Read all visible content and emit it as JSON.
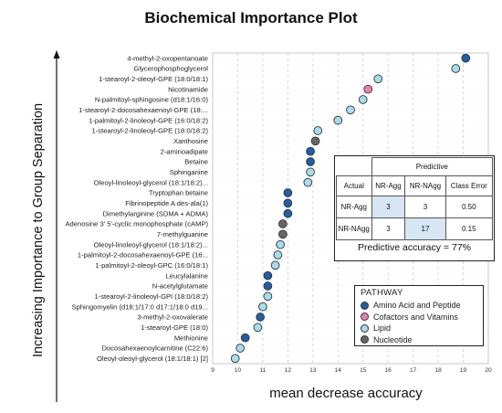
{
  "title": "Biochemical Importance Plot",
  "chart_data": {
    "type": "scatter",
    "title": "Biochemical Importance Plot",
    "xlabel": "mean decrease accuracy",
    "ylabel": "Increasing Importance to Group Separation",
    "xlim": [
      9,
      20
    ],
    "xticks": [
      "9",
      "10",
      "11",
      "12",
      "13",
      "14",
      "15",
      "16",
      "17",
      "18",
      "19",
      "20"
    ],
    "grid": "vertical dashed",
    "pathway_colors": {
      "amino": "#1f5ea8",
      "cofactor": "#e97fb0",
      "lipid": "#a6dcef",
      "nucleotide": "#666666"
    },
    "points": [
      {
        "label": "4-methyl-2-oxopentanoate",
        "value": 19.1,
        "pathway": "amino"
      },
      {
        "label": "Glycerophosphoglycerol",
        "value": 18.7,
        "pathway": "lipid"
      },
      {
        "label": "1-stearoyl-2-oleoyl-GPE (18:0/18:1)",
        "value": 15.6,
        "pathway": "lipid"
      },
      {
        "label": "Nicotinamide",
        "value": 15.2,
        "pathway": "cofactor"
      },
      {
        "label": "N-palmitoyl-sphingosine (d18:1/16:0)",
        "value": 15.0,
        "pathway": "lipid"
      },
      {
        "label": "1-stearoyl-2-docosahexaenoyl-GPE (18:...",
        "value": 14.5,
        "pathway": "lipid"
      },
      {
        "label": "1-palmitoyl-2-linoleoyl-GPE (16:0/18:2)",
        "value": 14.0,
        "pathway": "lipid"
      },
      {
        "label": "1-stearoyl-2-linoleoyl-GPE (18:0/18:2)",
        "value": 13.2,
        "pathway": "lipid"
      },
      {
        "label": "Xanthosine",
        "value": 13.1,
        "pathway": "nucleotide"
      },
      {
        "label": "2-aminoadipate",
        "value": 12.9,
        "pathway": "amino"
      },
      {
        "label": "Betaine",
        "value": 12.9,
        "pathway": "amino"
      },
      {
        "label": "Sphinganine",
        "value": 12.9,
        "pathway": "lipid"
      },
      {
        "label": "Oleoyl-linoleoyl-glycerol (18:1/18:2)...",
        "value": 12.8,
        "pathway": "lipid"
      },
      {
        "label": "Tryptophan betaine",
        "value": 12.0,
        "pathway": "amino"
      },
      {
        "label": "Fibrinopeptide A des-ala(1)",
        "value": 12.0,
        "pathway": "amino"
      },
      {
        "label": "Dimethylarginine (SDMA + ADMA)",
        "value": 12.0,
        "pathway": "amino"
      },
      {
        "label": "Adenosine 3' 5'-cyclic monophosphate (cAMP)",
        "value": 11.8,
        "pathway": "nucleotide"
      },
      {
        "label": "7-methylguanine",
        "value": 11.8,
        "pathway": "nucleotide"
      },
      {
        "label": "Oleoyl-linoleoyl-glycerol (18:1/18:2)...",
        "value": 11.7,
        "pathway": "lipid"
      },
      {
        "label": "1-palmitoyl-2-docosahexaenoyl-GPE (16...",
        "value": 11.6,
        "pathway": "lipid"
      },
      {
        "label": "1-palmitoyl-2-oleoyl-GPC (16:0/18:1)",
        "value": 11.5,
        "pathway": "lipid"
      },
      {
        "label": "Leucylalanine",
        "value": 11.2,
        "pathway": "amino"
      },
      {
        "label": "N-acetylglutamate",
        "value": 11.2,
        "pathway": "amino"
      },
      {
        "label": "1-stearoyl-2-linoleoyl-GPI (18:0/18:2)",
        "value": 11.2,
        "pathway": "lipid"
      },
      {
        "label": "Sphingomyelin (d18:1/17:0 d17:1/18:0 d19...",
        "value": 11.0,
        "pathway": "lipid"
      },
      {
        "label": "3-methyl-2-oxovalerate",
        "value": 10.9,
        "pathway": "amino"
      },
      {
        "label": "1-stearoyl-GPE (18:0)",
        "value": 10.8,
        "pathway": "lipid"
      },
      {
        "label": "Methionine",
        "value": 10.3,
        "pathway": "amino"
      },
      {
        "label": "Docosahexaenoylcarnitine (C22:6)",
        "value": 10.1,
        "pathway": "lipid"
      },
      {
        "label": "Oleoyl-oleoyl-glycerol (18:1/18:1) [2]",
        "value": 9.9,
        "pathway": "lipid"
      }
    ]
  },
  "predictive_table": {
    "header": "Predictive",
    "col_actual": "Actual",
    "col_nr_agg": "NR-Agg",
    "col_nr_nagg": "NR-NAgg",
    "col_class_error": "Class Error",
    "rows": [
      {
        "label": "NR-Agg",
        "nr_agg": "3",
        "nr_nagg": "3",
        "error": "0.50"
      },
      {
        "label": "NR-NAgg",
        "nr_agg": "3",
        "nr_nagg": "17",
        "error": "0.15"
      }
    ],
    "accuracy": "Predictive accuracy = 77%"
  },
  "legend": {
    "title": "PATHWAY",
    "items": [
      {
        "label": "Amino Acid and Peptide",
        "color": "#1f5ea8"
      },
      {
        "label": "Cofactors and Vitamins",
        "color": "#e97fb0"
      },
      {
        "label": "Lipid",
        "color": "#a6dcef"
      },
      {
        "label": "Nucleotide",
        "color": "#666666"
      }
    ]
  }
}
